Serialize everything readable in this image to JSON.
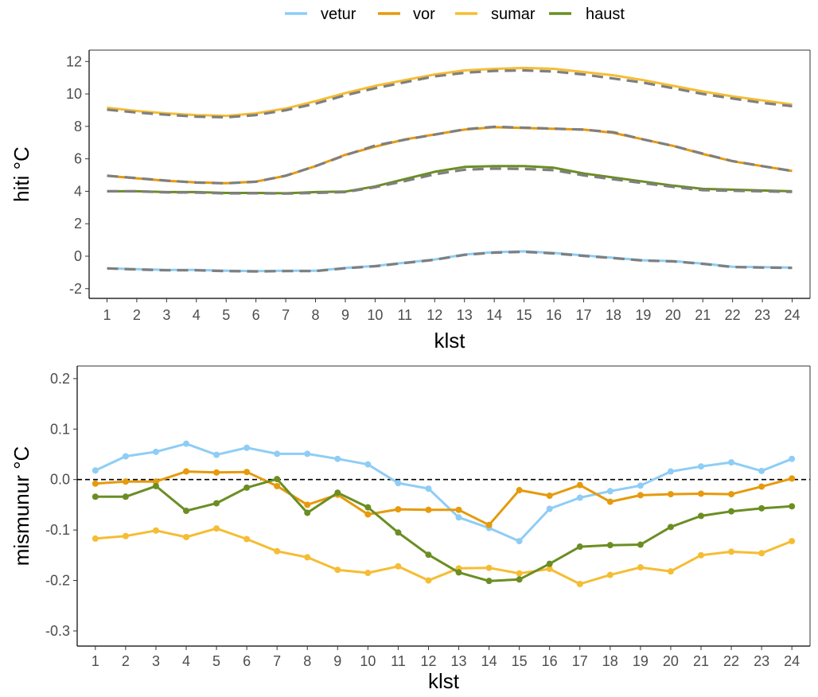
{
  "legend": [
    {
      "label": "vetur",
      "color": "#8ecdf5"
    },
    {
      "label": "vor",
      "color": "#e69a0c"
    },
    {
      "label": "sumar",
      "color": "#f5bd34"
    },
    {
      "label": "haust",
      "color": "#6b8e23"
    }
  ],
  "chart_data": [
    {
      "type": "line",
      "xlabel": "klst",
      "ylabel": "hiti °C",
      "x": [
        1,
        2,
        3,
        4,
        5,
        6,
        7,
        8,
        9,
        10,
        11,
        12,
        13,
        14,
        15,
        16,
        17,
        18,
        19,
        20,
        21,
        22,
        23,
        24
      ],
      "x_ticks": [
        "1",
        "2",
        "3",
        "4",
        "5",
        "6",
        "7",
        "8",
        "9",
        "10",
        "11",
        "12",
        "13",
        "14",
        "15",
        "16",
        "17",
        "18",
        "19",
        "20",
        "21",
        "22",
        "23",
        "24"
      ],
      "ylim": [
        -2.6,
        12.7
      ],
      "y_ticks": [
        "-2",
        "0",
        "2",
        "4",
        "6",
        "8",
        "10",
        "12"
      ],
      "y_tick_values": [
        -2,
        0,
        2,
        4,
        6,
        8,
        10,
        12
      ],
      "grid": false,
      "series": [
        {
          "name": "vetur",
          "color": "#8ecdf5",
          "values": [
            -0.75,
            -0.8,
            -0.85,
            -0.85,
            -0.9,
            -0.92,
            -0.9,
            -0.9,
            -0.72,
            -0.6,
            -0.4,
            -0.2,
            0.1,
            0.25,
            0.3,
            0.2,
            0.05,
            -0.1,
            -0.25,
            -0.3,
            -0.45,
            -0.65,
            -0.68,
            -0.7
          ]
        },
        {
          "name": "vor",
          "color": "#e69a0c",
          "values": [
            4.95,
            4.8,
            4.65,
            4.55,
            4.5,
            4.6,
            4.95,
            5.55,
            6.25,
            6.75,
            7.2,
            7.5,
            7.8,
            7.95,
            7.9,
            7.85,
            7.8,
            7.6,
            7.2,
            6.8,
            6.3,
            5.85,
            5.55,
            5.25
          ]
        },
        {
          "name": "sumar",
          "color": "#f5bd34",
          "values": [
            9.15,
            8.95,
            8.8,
            8.7,
            8.65,
            8.8,
            9.1,
            9.55,
            10.05,
            10.5,
            10.85,
            11.2,
            11.45,
            11.55,
            11.6,
            11.55,
            11.35,
            11.15,
            10.85,
            10.5,
            10.15,
            9.85,
            9.6,
            9.35
          ]
        },
        {
          "name": "haust",
          "color": "#6b8e23",
          "values": [
            4.0,
            4.0,
            3.95,
            3.95,
            3.9,
            3.9,
            3.88,
            3.95,
            3.98,
            4.3,
            4.75,
            5.2,
            5.5,
            5.55,
            5.55,
            5.45,
            5.1,
            4.85,
            4.6,
            4.35,
            4.15,
            4.1,
            4.05,
            4.0
          ]
        }
      ],
      "reference_lines": {
        "style": "dashed",
        "color": "#7f7f7f",
        "series": [
          [
            -0.75,
            -0.82,
            -0.87,
            -0.87,
            -0.92,
            -0.94,
            -0.92,
            -0.92,
            -0.74,
            -0.62,
            -0.42,
            -0.22,
            0.08,
            0.22,
            0.27,
            0.17,
            0.02,
            -0.12,
            -0.27,
            -0.32,
            -0.47,
            -0.67,
            -0.7,
            -0.72
          ],
          [
            4.96,
            4.81,
            4.66,
            4.54,
            4.49,
            4.59,
            4.96,
            5.55,
            6.22,
            6.82,
            7.18,
            7.49,
            7.82,
            7.98,
            7.92,
            7.86,
            7.8,
            7.64,
            7.2,
            6.8,
            6.32,
            5.86,
            5.55,
            5.25
          ],
          [
            9.03,
            8.85,
            8.72,
            8.6,
            8.56,
            8.7,
            9.0,
            9.4,
            9.92,
            10.35,
            10.72,
            11.08,
            11.3,
            11.42,
            11.45,
            11.38,
            11.2,
            10.95,
            10.7,
            10.35,
            10.0,
            9.72,
            9.45,
            9.25
          ],
          [
            4.0,
            4.0,
            3.93,
            3.92,
            3.87,
            3.88,
            3.86,
            3.9,
            3.95,
            4.25,
            4.63,
            5.05,
            5.33,
            5.4,
            5.38,
            5.3,
            4.98,
            4.74,
            4.5,
            4.27,
            4.07,
            4.03,
            4.0,
            3.96
          ]
        ]
      }
    },
    {
      "type": "line",
      "xlabel": "klst",
      "ylabel": "mismunur °C",
      "x": [
        1,
        2,
        3,
        4,
        5,
        6,
        7,
        8,
        9,
        10,
        11,
        12,
        13,
        14,
        15,
        16,
        17,
        18,
        19,
        20,
        21,
        22,
        23,
        24
      ],
      "x_ticks": [
        "1",
        "2",
        "3",
        "4",
        "5",
        "6",
        "7",
        "8",
        "9",
        "10",
        "11",
        "12",
        "13",
        "14",
        "15",
        "16",
        "17",
        "18",
        "19",
        "20",
        "21",
        "22",
        "23",
        "24"
      ],
      "ylim": [
        -0.33,
        0.225
      ],
      "y_ticks": [
        "-0.3",
        "-0.2",
        "-0.1",
        "0.0",
        "0.1",
        "0.2"
      ],
      "y_tick_values": [
        -0.3,
        -0.2,
        -0.1,
        0.0,
        0.1,
        0.2
      ],
      "grid": false,
      "zero_line": "dashed",
      "markers": true,
      "series": [
        {
          "name": "vetur",
          "color": "#8ecdf5",
          "values": [
            0.018,
            0.046,
            0.055,
            0.071,
            0.049,
            0.063,
            0.051,
            0.051,
            0.041,
            0.03,
            -0.007,
            -0.018,
            -0.075,
            -0.096,
            -0.122,
            -0.058,
            -0.036,
            -0.023,
            -0.012,
            0.016,
            0.026,
            0.034,
            0.017,
            0.041
          ]
        },
        {
          "name": "vor",
          "color": "#e69a0c",
          "values": [
            -0.008,
            -0.004,
            -0.004,
            0.016,
            0.014,
            0.015,
            -0.013,
            -0.05,
            -0.03,
            -0.069,
            -0.059,
            -0.06,
            -0.06,
            -0.09,
            -0.021,
            -0.032,
            -0.011,
            -0.044,
            -0.031,
            -0.029,
            -0.028,
            -0.029,
            -0.014,
            0.002
          ]
        },
        {
          "name": "sumar",
          "color": "#f5bd34",
          "values": [
            -0.117,
            -0.112,
            -0.101,
            -0.114,
            -0.097,
            -0.118,
            -0.142,
            -0.154,
            -0.179,
            -0.185,
            -0.172,
            -0.2,
            -0.176,
            -0.175,
            -0.186,
            -0.177,
            -0.207,
            -0.189,
            -0.174,
            -0.182,
            -0.15,
            -0.143,
            -0.146,
            -0.122
          ]
        },
        {
          "name": "haust",
          "color": "#6b8e23",
          "values": [
            -0.034,
            -0.034,
            -0.013,
            -0.062,
            -0.047,
            -0.016,
            0.001,
            -0.066,
            -0.026,
            -0.055,
            -0.105,
            -0.149,
            -0.184,
            -0.201,
            -0.198,
            -0.167,
            -0.133,
            -0.13,
            -0.129,
            -0.094,
            -0.072,
            -0.063,
            -0.057,
            -0.053
          ]
        }
      ]
    }
  ]
}
